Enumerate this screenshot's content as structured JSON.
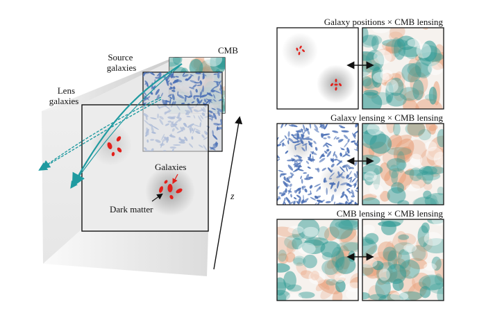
{
  "left_panel": {
    "labels": {
      "cmb": "CMB",
      "source_galaxies_line1": "Source",
      "source_galaxies_line2": "galaxies",
      "lens_galaxies_line1": "Lens",
      "lens_galaxies_line2": "galaxies",
      "galaxies": "Galaxies",
      "dark_matter": "Dark matter",
      "z_axis": "z"
    }
  },
  "right_panels": [
    {
      "title": "Galaxy positions × CMB lensing",
      "left_map": "galaxy-positions",
      "right_map": "cmb-lensing"
    },
    {
      "title": "Galaxy lensing × CMB lensing",
      "left_map": "galaxy-shear",
      "right_map": "cmb-lensing"
    },
    {
      "title": "CMB lensing × CMB lensing",
      "left_map": "cmb-lensing",
      "right_map": "cmb-lensing"
    }
  ],
  "colors": {
    "galaxy_red": "#e3201b",
    "shear_blue": "#4a6fb5",
    "lensing_teal": "#2f9a94",
    "cmb_orange": "#e8a07a",
    "light_ray": "#1f9aa0"
  }
}
